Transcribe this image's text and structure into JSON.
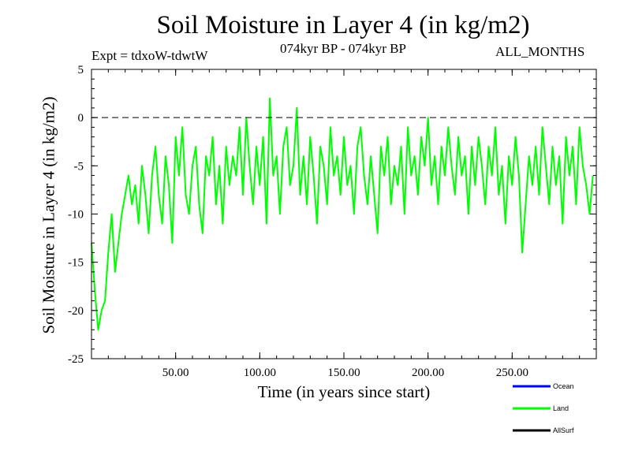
{
  "chart_data": {
    "type": "line",
    "title": "Soil Moisture in Layer 4 (in kg/m2)",
    "subtitle": "074kyr BP - 074kyr BP",
    "left_note": "Expt = tdxoW-tdwtW",
    "right_note": "ALL_MONTHS",
    "xlabel": "Time (in years since start)",
    "ylabel": "Soil Moisture in Layer 4 (in kg/m2)",
    "xlim": [
      0,
      300
    ],
    "ylim": [
      -25,
      5
    ],
    "xticks": [
      50,
      100,
      150,
      200,
      250
    ],
    "xtick_labels": [
      "50.00",
      "100.00",
      "150.00",
      "200.00",
      "250.00"
    ],
    "yticks": [
      5,
      0,
      -5,
      -10,
      -15,
      -20,
      -25
    ],
    "ytick_labels": [
      "5",
      "0",
      "-5",
      "-10",
      "-15",
      "-20",
      "-25"
    ],
    "reference_line": 0,
    "legend_position": "bottom-right",
    "series": [
      {
        "name": "Ocean",
        "color": "#0000ff",
        "values": []
      },
      {
        "name": "Land",
        "color": "#00ff00",
        "x": [
          0,
          2,
          4,
          6,
          8,
          10,
          12,
          14,
          16,
          18,
          20,
          22,
          24,
          26,
          28,
          30,
          32,
          34,
          36,
          38,
          40,
          42,
          44,
          46,
          48,
          50,
          52,
          54,
          56,
          58,
          60,
          62,
          64,
          66,
          68,
          70,
          72,
          74,
          76,
          78,
          80,
          82,
          84,
          86,
          88,
          90,
          92,
          94,
          96,
          98,
          100,
          102,
          104,
          106,
          108,
          110,
          112,
          114,
          116,
          118,
          120,
          122,
          124,
          126,
          128,
          130,
          132,
          134,
          136,
          138,
          140,
          142,
          144,
          146,
          148,
          150,
          152,
          154,
          156,
          158,
          160,
          162,
          164,
          166,
          168,
          170,
          172,
          174,
          176,
          178,
          180,
          182,
          184,
          186,
          188,
          190,
          192,
          194,
          196,
          198,
          200,
          202,
          204,
          206,
          208,
          210,
          212,
          214,
          216,
          218,
          220,
          222,
          224,
          226,
          228,
          230,
          232,
          234,
          236,
          238,
          240,
          242,
          244,
          246,
          248,
          250,
          252,
          254,
          256,
          258,
          260,
          262,
          264,
          266,
          268,
          270,
          272,
          274,
          276,
          278,
          280,
          282,
          284,
          286,
          288,
          290,
          292,
          294,
          296,
          298
        ],
        "values": [
          -13,
          -18,
          -22,
          -20,
          -19,
          -14,
          -10,
          -16,
          -13,
          -10,
          -8,
          -6,
          -9,
          -7,
          -11,
          -5,
          -8,
          -12,
          -6,
          -3,
          -8,
          -11,
          -4,
          -7,
          -13,
          -2,
          -6,
          -1,
          -8,
          -10,
          -5,
          -3,
          -9,
          -12,
          -4,
          -6,
          -2,
          -9,
          -5,
          -11,
          -3,
          -7,
          -4,
          -6,
          -1,
          -8,
          0,
          -5,
          -9,
          -3,
          -7,
          -2,
          -11,
          2,
          -6,
          -4,
          -10,
          -3,
          -1,
          -7,
          -5,
          1,
          -8,
          -4,
          -9,
          -2,
          -6,
          -11,
          -3,
          -5,
          -9,
          -1,
          -6,
          -4,
          -8,
          -2,
          -7,
          -5,
          -10,
          -3,
          -1,
          -6,
          -9,
          -4,
          -8,
          -12,
          -3,
          -6,
          -2,
          -9,
          -5,
          -7,
          -3,
          -10,
          -1,
          -6,
          -4,
          -8,
          -2,
          -5,
          0,
          -7,
          -4,
          -9,
          -3,
          -6,
          -1,
          -5,
          -8,
          -2,
          -6,
          -4,
          -10,
          -3,
          -7,
          -2,
          -5,
          -9,
          -3,
          -6,
          -1,
          -8,
          -5,
          -11,
          -4,
          -7,
          -2,
          -6,
          -14,
          -9,
          -4,
          -7,
          -3,
          -8,
          -1,
          -5,
          -9,
          -3,
          -7,
          -4,
          -11,
          -2,
          -6,
          -3,
          -9,
          -1,
          -5,
          -7,
          -10,
          -6
        ]
      },
      {
        "name": "AllSurf",
        "color": "#000000",
        "values": []
      }
    ]
  }
}
